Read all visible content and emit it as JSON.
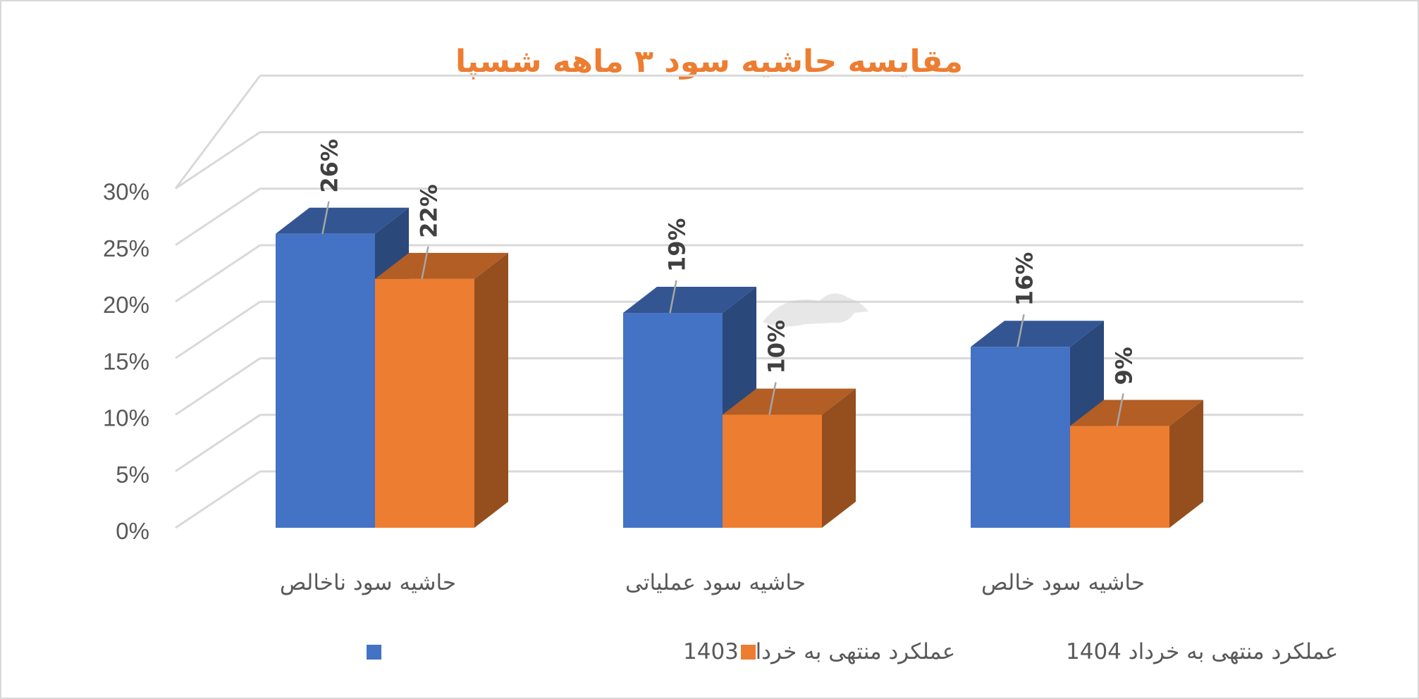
{
  "chart_data": {
    "type": "bar",
    "title": "مقایسه حاشیه سود ۳ ماهه شسپا",
    "categories": [
      "حاشیه سود ناخالص",
      "حاشیه سود عملیاتی",
      "حاشیه سود خالص"
    ],
    "series": [
      {
        "name": "عملکرد منتهی به خرداد 1403",
        "values": [
          26,
          19,
          16
        ],
        "labels": [
          "26%",
          "19%",
          "16%"
        ],
        "color": "#4472C4"
      },
      {
        "name": "عملکرد منتهی به خرداد 1404",
        "values": [
          22,
          10,
          9
        ],
        "labels": [
          "22%",
          "10%",
          "9%"
        ],
        "color": "#ED7D31"
      }
    ],
    "ylim": [
      0,
      30
    ],
    "yticks": [
      0,
      5,
      10,
      15,
      20,
      25,
      30
    ],
    "ytick_labels": [
      "0%",
      "5%",
      "10%",
      "15%",
      "20%",
      "25%",
      "30%"
    ],
    "grid": true,
    "legend_position": "bottom",
    "title_color": "#ED7D31"
  }
}
